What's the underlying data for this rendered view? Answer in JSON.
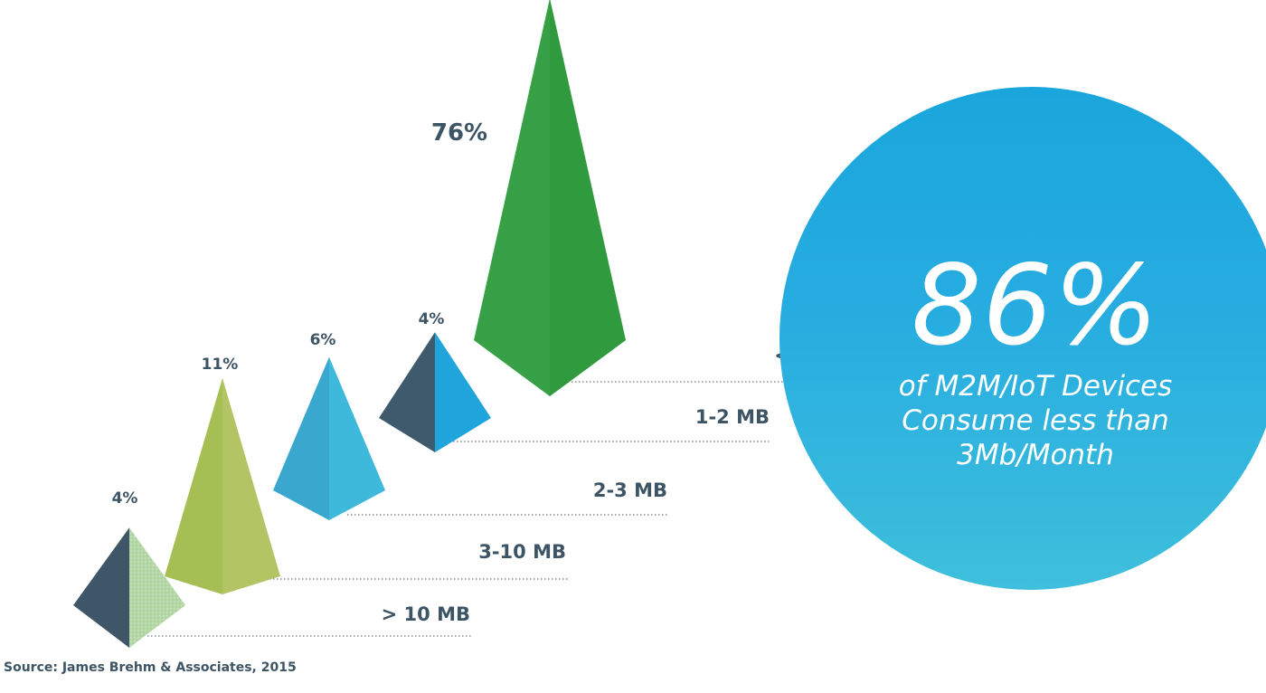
{
  "chart_data": {
    "type": "bar",
    "categories": [
      "> 10 MB",
      "3-10 MB",
      "2-3 MB",
      "1-2 MB",
      "< 1 MB"
    ],
    "values": [
      4,
      11,
      6,
      4,
      76
    ],
    "value_labels": [
      "4%",
      "11%",
      "6%",
      "4%",
      "76%"
    ],
    "colors": [
      [
        "#3f5668",
        "#b4d7a6"
      ],
      [
        "#a5bf55",
        "#b3c464"
      ],
      [
        "#3aa7cf",
        "#3fb9db"
      ],
      [
        "#3f5a6d",
        "#1fa4dc"
      ],
      [
        "#38a046",
        "#2f9a3e"
      ]
    ],
    "legend": "none",
    "grid": false
  },
  "callout": {
    "value": "86%",
    "text": "of M2M/IoT Devices\nConsume less than\n3Mb/Month",
    "color": "#1aa6dc"
  },
  "source": "Source: James Brehm & Associates, 2015"
}
